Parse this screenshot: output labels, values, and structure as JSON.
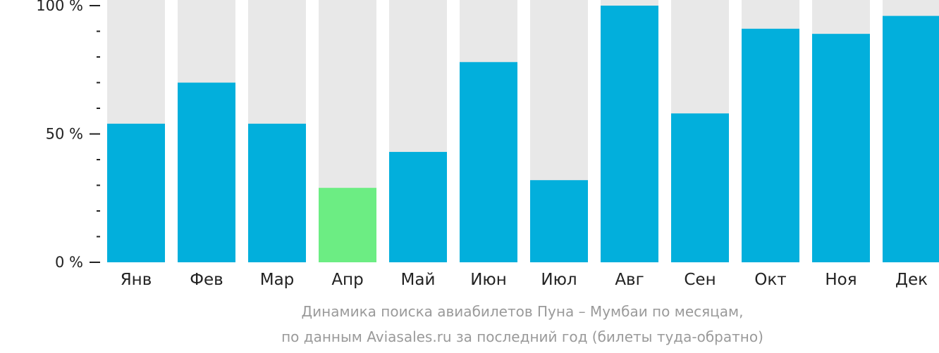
{
  "chart_data": {
    "type": "bar",
    "categories": [
      "Янв",
      "Фев",
      "Мар",
      "Апр",
      "Май",
      "Июн",
      "Июл",
      "Авг",
      "Сен",
      "Окт",
      "Ноя",
      "Дек"
    ],
    "values": [
      54,
      70,
      54,
      29,
      43,
      78,
      32,
      100,
      58,
      91,
      89,
      96
    ],
    "highlight_index": 3,
    "ylim": [
      0,
      100
    ],
    "y_ticks": [
      {
        "value": 0,
        "label": "0 %"
      },
      {
        "value": 50,
        "label": "50 %"
      },
      {
        "value": 100,
        "label": "100 %"
      }
    ],
    "minor_tick_step": 10,
    "grid": false,
    "colors": {
      "bar": "#02afdc",
      "highlight": "#6ced83",
      "background_bar": "#e8e8e8",
      "axis": "#222222"
    }
  },
  "caption": {
    "line1": "Динамика поиска авиабилетов Пуна – Мумбаи по месяцам,",
    "line2": "по данным Aviasales.ru за последний год (билеты туда-обратно)"
  }
}
